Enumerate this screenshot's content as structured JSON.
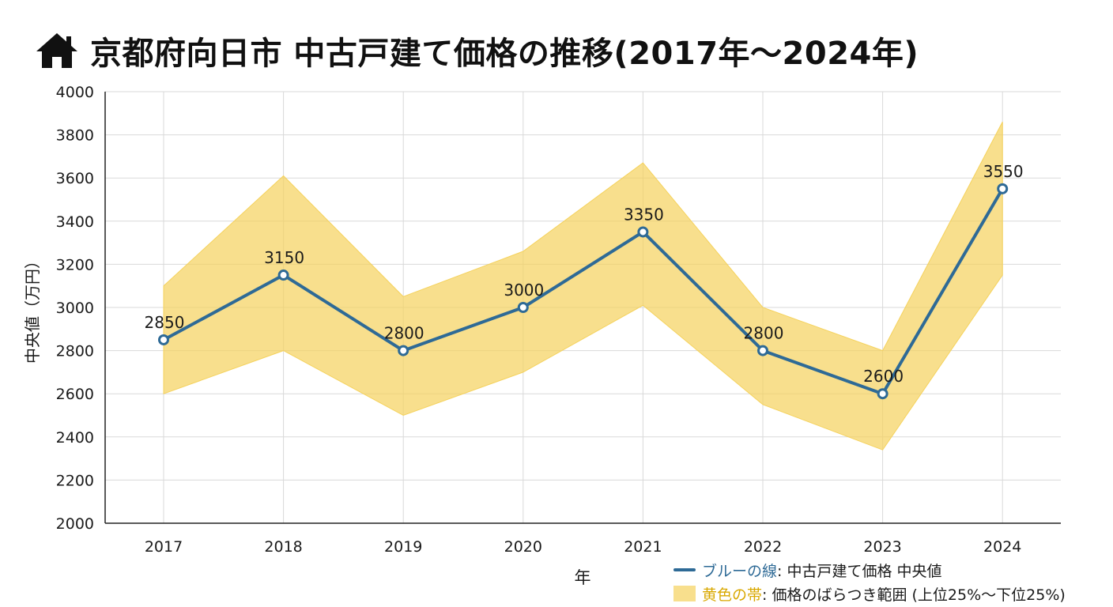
{
  "header": {
    "title": "京都府向日市 中古戸建て価格の推移(2017年〜2024年)"
  },
  "colors": {
    "line": "#2e6a96",
    "band": "#f5d25c",
    "band_opacity": 0.7,
    "grid": "#d9d9d9",
    "axis": "#222222",
    "text": "#1a1a1a"
  },
  "chart_data": {
    "type": "line",
    "title": "京都府向日市 中古戸建て価格の推移(2017年〜2024年)",
    "xlabel": "年",
    "ylabel": "中央値（万円）",
    "x": [
      "2017",
      "2018",
      "2019",
      "2020",
      "2021",
      "2022",
      "2023",
      "2024"
    ],
    "ylim": [
      2000,
      4000
    ],
    "yticks": [
      "2000",
      "2200",
      "2400",
      "2600",
      "2800",
      "3000",
      "3200",
      "3400",
      "3600",
      "3800",
      "4000"
    ],
    "grid": true,
    "legend_position": "bottom-right",
    "series": [
      {
        "kind": "line",
        "values": [
          2850,
          3150,
          2800,
          3000,
          3350,
          2800,
          2600,
          3550
        ],
        "labels": [
          "2850",
          "3150",
          "2800",
          "3000",
          "3350",
          "2800",
          "2600",
          "3550"
        ]
      },
      {
        "kind": "band",
        "upper": [
          3100,
          3610,
          3050,
          3260,
          3670,
          3000,
          2800,
          3860
        ],
        "lower": [
          2600,
          2800,
          2500,
          2700,
          3010,
          2550,
          2340,
          3150
        ]
      }
    ]
  },
  "legend": {
    "line_key": "ブルーの線",
    "line_text": ": 中古戸建て価格 中央値",
    "band_key": "黄色の帯",
    "band_text": " : 価格のばらつき範囲 (上位25%〜下位25%)"
  }
}
